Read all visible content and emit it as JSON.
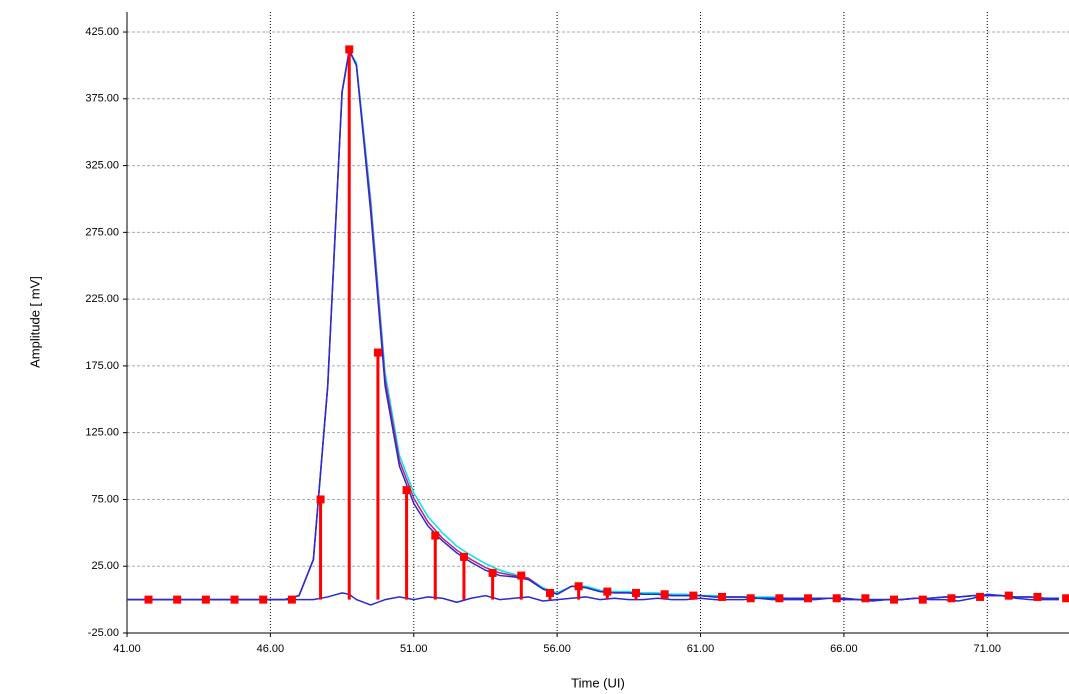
{
  "chart_data": {
    "type": "line",
    "xlabel": "Time (UI)",
    "ylabel": "Amplitude [ mV]",
    "xlim": [
      41,
      73.85
    ],
    "ylim": [
      -25,
      440
    ],
    "xticks": [
      {
        "value": 41,
        "label": "41.00"
      },
      {
        "value": 46,
        "label": "46.00"
      },
      {
        "value": 51,
        "label": "51.00"
      },
      {
        "value": 56,
        "label": "56.00"
      },
      {
        "value": 61,
        "label": "61.00"
      },
      {
        "value": 66,
        "label": "66.00"
      },
      {
        "value": 71,
        "label": "71.00"
      }
    ],
    "yticks": [
      {
        "value": -25,
        "label": "-25.00"
      },
      {
        "value": 25,
        "label": "25.00"
      },
      {
        "value": 75,
        "label": "75.00"
      },
      {
        "value": 125,
        "label": "125.00"
      },
      {
        "value": 175,
        "label": "175.00"
      },
      {
        "value": 225,
        "label": "225.00"
      },
      {
        "value": 275,
        "label": "275.00"
      },
      {
        "value": 325,
        "label": "325.00"
      },
      {
        "value": 375,
        "label": "375.00"
      },
      {
        "value": 425,
        "label": "425.00"
      }
    ],
    "grid": true,
    "x": [
      41,
      41.5,
      42,
      42.5,
      43,
      43.5,
      44,
      44.5,
      45,
      45.5,
      46,
      46.5,
      47,
      47.5,
      48,
      48.5,
      48.75,
      49,
      49.5,
      50,
      50.5,
      51,
      51.5,
      52,
      52.5,
      53,
      53.5,
      54,
      54.5,
      55,
      55.5,
      56,
      56.5,
      57,
      57.5,
      58,
      58.5,
      59,
      59.5,
      60,
      60.5,
      61,
      61.5,
      62,
      62.5,
      63,
      63.5,
      64,
      64.5,
      65,
      65.5,
      66,
      66.5,
      67,
      67.5,
      68,
      68.5,
      69,
      69.5,
      70,
      70.5,
      71,
      71.5,
      72,
      72.5,
      73,
      73.5
    ],
    "series": [
      {
        "color": "#00e5e5",
        "values": [
          0,
          0,
          0,
          0,
          0,
          0,
          0,
          0,
          0,
          0,
          0,
          0,
          3,
          30,
          160,
          380,
          410,
          402,
          300,
          170,
          108,
          80,
          62,
          50,
          40,
          33,
          27,
          22,
          19,
          16,
          9,
          5,
          10,
          10,
          7,
          6,
          6,
          5,
          5,
          4,
          4,
          3,
          3,
          2,
          2,
          2,
          2,
          1,
          1,
          1,
          1,
          1,
          0,
          0,
          0,
          0,
          1,
          1,
          2,
          2,
          3,
          3,
          3,
          2,
          2,
          1,
          1
        ]
      },
      {
        "color": "#c02080",
        "values": [
          0,
          0,
          0,
          0,
          0,
          0,
          0,
          0,
          0,
          0,
          0,
          0,
          3,
          30,
          160,
          380,
          411,
          400,
          295,
          165,
          104,
          76,
          58,
          46,
          37,
          30,
          24,
          20,
          18,
          16,
          8,
          4,
          10,
          9,
          6,
          5,
          5,
          4,
          4,
          3,
          3,
          3,
          2,
          2,
          2,
          1,
          1,
          1,
          1,
          1,
          1,
          1,
          0,
          0,
          0,
          0,
          1,
          1,
          2,
          2,
          3,
          3,
          3,
          2,
          2,
          1,
          1
        ]
      },
      {
        "color": "#2a2ad0",
        "values": [
          0,
          0,
          0,
          0,
          0,
          0,
          0,
          0,
          0,
          0,
          0,
          0,
          3,
          30,
          160,
          380,
          412,
          400,
          290,
          160,
          100,
          72,
          55,
          44,
          35,
          28,
          22,
          18,
          17,
          15,
          8,
          4,
          10,
          9,
          6,
          5,
          5,
          4,
          4,
          3,
          3,
          3,
          2,
          2,
          2,
          1,
          1,
          1,
          1,
          1,
          1,
          1,
          0,
          0,
          0,
          0,
          1,
          1,
          2,
          2,
          3,
          3,
          3,
          2,
          2,
          1,
          1
        ]
      },
      {
        "color": "#2a2ad0",
        "values": [
          0,
          0,
          0,
          0,
          0,
          0,
          0,
          0,
          0,
          0,
          0,
          0,
          0,
          0,
          2,
          5,
          4,
          0,
          -4,
          0,
          2,
          0,
          2,
          1,
          -2,
          1,
          3,
          0,
          1,
          2,
          -1,
          0,
          1,
          2,
          0,
          1,
          0,
          0,
          1,
          0,
          0,
          1,
          0,
          0,
          0,
          1,
          0,
          0,
          0,
          0,
          1,
          0,
          0,
          -1,
          0,
          0,
          1,
          0,
          0,
          -1,
          1,
          4,
          3,
          1,
          0,
          0,
          0
        ]
      }
    ],
    "stems": {
      "color": "#ff0000",
      "x": [
        41.75,
        42.75,
        43.75,
        44.75,
        45.75,
        46.75,
        47.75,
        48.75,
        49.75,
        50.75,
        51.75,
        52.75,
        53.75,
        54.75,
        55.75,
        56.75,
        57.75,
        58.75,
        59.75,
        60.75,
        61.75,
        62.75,
        63.75,
        64.75,
        65.75,
        66.75,
        67.75,
        68.75,
        69.75,
        70.75,
        71.75,
        72.75,
        73.75
      ],
      "values": [
        0,
        0,
        0,
        0,
        0,
        0,
        75,
        412,
        185,
        82,
        48,
        32,
        20,
        18,
        5,
        10,
        6,
        5,
        4,
        3,
        2,
        1,
        1,
        1,
        1,
        1,
        0,
        0,
        1,
        2,
        3,
        2,
        1
      ]
    }
  }
}
